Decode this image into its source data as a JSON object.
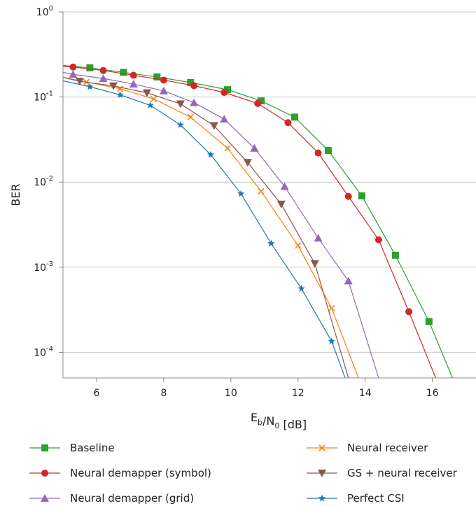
{
  "chart_data": {
    "type": "line",
    "xlabel": "E_b/N_0 [dB]",
    "ylabel": "BER",
    "xlim": [
      5,
      17.3
    ],
    "ylim": [
      5e-05,
      1
    ],
    "yscale": "log",
    "grid": true,
    "legend_position": "bottom",
    "x_ticks": [
      6,
      8,
      10,
      12,
      14,
      16
    ],
    "y_ticks": [
      {
        "value": 1,
        "base": "10",
        "exp": "0"
      },
      {
        "value": 0.1,
        "base": "10",
        "exp": "-1"
      },
      {
        "value": 0.01,
        "base": "10",
        "exp": "-2"
      },
      {
        "value": 0.001,
        "base": "10",
        "exp": "-3"
      },
      {
        "value": 0.0001,
        "base": "10",
        "exp": "-4"
      }
    ],
    "series": [
      {
        "name": "Baseline",
        "color": "#2ca02c",
        "marker": "square",
        "x": [
          5,
          5.8,
          6.8,
          7.8,
          8.8,
          9.9,
          10.9,
          11.9,
          12.9,
          13.9,
          14.9,
          15.9,
          16.6
        ],
        "y": [
          0.235,
          0.22,
          0.195,
          0.172,
          0.148,
          0.122,
          0.09,
          0.058,
          0.0235,
          0.0069,
          0.00138,
          0.00023,
          5e-05
        ]
      },
      {
        "name": "Neural demapper (symbol)",
        "color": "#d62728",
        "marker": "circle",
        "x": [
          5,
          5.3,
          6.2,
          7.1,
          8.0,
          8.9,
          9.8,
          10.8,
          11.7,
          12.6,
          13.5,
          14.4,
          15.3,
          16.1
        ],
        "y": [
          0.23,
          0.225,
          0.205,
          0.18,
          0.158,
          0.136,
          0.113,
          0.084,
          0.05,
          0.022,
          0.0068,
          0.0021,
          0.0003,
          5e-05
        ]
      },
      {
        "name": "Neural demapper (grid)",
        "color": "#9467bd",
        "marker": "triangle",
        "x": [
          5,
          5.3,
          6.2,
          7.1,
          8.0,
          8.9,
          9.8,
          10.7,
          11.6,
          12.6,
          13.5,
          14.4
        ],
        "y": [
          0.195,
          0.185,
          0.165,
          0.142,
          0.118,
          0.086,
          0.055,
          0.025,
          0.0089,
          0.0022,
          0.00069,
          5e-05
        ]
      },
      {
        "name": "Neural receiver",
        "color": "#ff7f0e",
        "marker": "x",
        "x": [
          5,
          5.7,
          6.7,
          7.7,
          8.8,
          9.9,
          10.9,
          12.0,
          13.0,
          13.8
        ],
        "y": [
          0.17,
          0.15,
          0.125,
          0.095,
          0.058,
          0.025,
          0.0078,
          0.0018,
          0.00033,
          5e-05
        ]
      },
      {
        "name": "GS + neural receiver",
        "color": "#8c564b",
        "marker": "triangle-down",
        "x": [
          5,
          5.5,
          6.5,
          7.5,
          8.5,
          9.5,
          10.5,
          11.5,
          12.5,
          13.5
        ],
        "y": [
          0.17,
          0.153,
          0.135,
          0.112,
          0.083,
          0.046,
          0.017,
          0.0055,
          0.0011,
          5e-05
        ]
      },
      {
        "name": "Perfect CSI",
        "color": "#1f77b4",
        "marker": "star",
        "x": [
          5,
          5.8,
          6.7,
          7.6,
          8.5,
          9.4,
          10.3,
          11.2,
          12.1,
          13.0,
          13.4
        ],
        "y": [
          0.155,
          0.132,
          0.106,
          0.08,
          0.047,
          0.021,
          0.0073,
          0.0019,
          0.00056,
          0.000135,
          5e-05
        ]
      }
    ]
  }
}
